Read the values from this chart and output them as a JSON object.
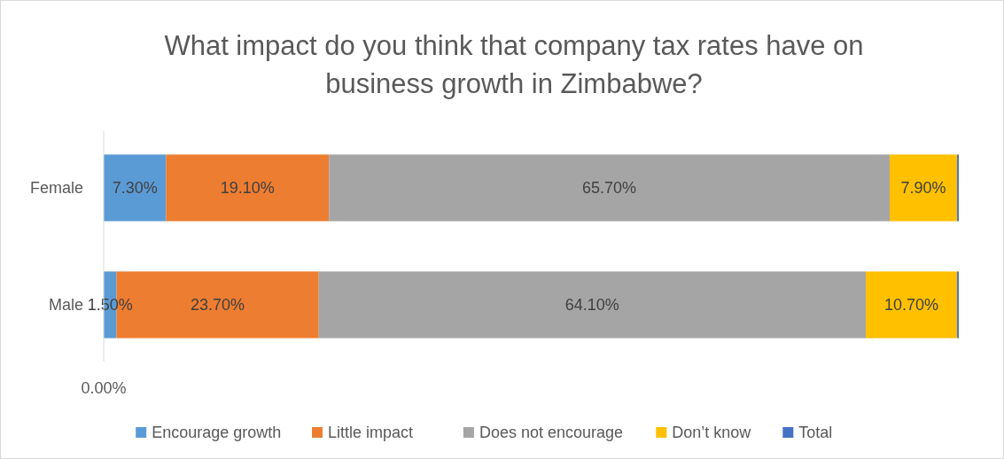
{
  "chart_data": {
    "type": "bar",
    "orientation": "horizontal",
    "stacked": true,
    "title": "What impact do you think that company tax rates have on business growth in Zimbabwe?",
    "categories": [
      "Female",
      "Male"
    ],
    "series": [
      {
        "name": "Encourage growth",
        "color": "#5b9bd5",
        "values": [
          7.3,
          1.5
        ],
        "value_labels": [
          "7.30%",
          "1.50%"
        ]
      },
      {
        "name": "Little impact",
        "color": "#ed7d31",
        "values": [
          19.1,
          23.7
        ],
        "value_labels": [
          "19.10%",
          "23.70%"
        ]
      },
      {
        "name": "Does not encourage",
        "color": "#a5a5a5",
        "values": [
          65.7,
          64.1
        ],
        "value_labels": [
          "65.70%",
          "64.10%"
        ]
      },
      {
        "name": "Don’t know",
        "color": "#ffc000",
        "values": [
          7.9,
          10.7
        ],
        "value_labels": [
          "7.90%",
          "10.70%"
        ]
      },
      {
        "name": "Total",
        "color": "#4472c4",
        "values": [
          0.2,
          0.2
        ],
        "value_labels": [
          null,
          null
        ]
      }
    ],
    "annotations": [
      "0.00%"
    ],
    "legend": "bottom"
  }
}
